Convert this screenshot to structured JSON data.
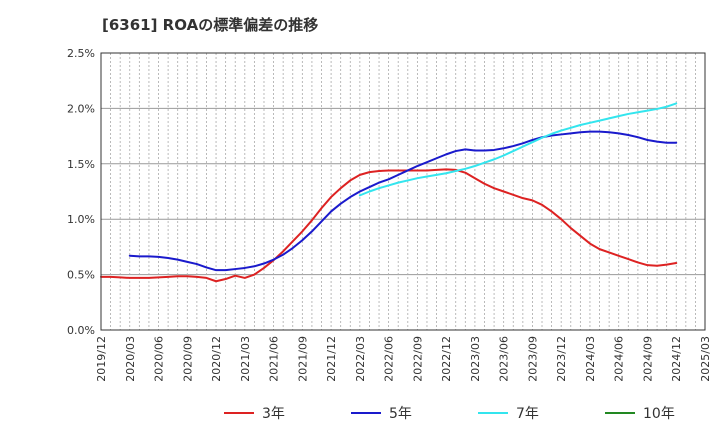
{
  "chart_data": {
    "type": "line",
    "title": "[6361]  ROAの標準偏差の推移",
    "xlabel": "",
    "ylabel": "",
    "ylim": [
      0,
      2.5
    ],
    "y_ticks": [
      "0.0%",
      "0.5%",
      "1.0%",
      "1.5%",
      "2.0%",
      "2.5%"
    ],
    "x_ticks": [
      "2019/12",
      "2020/03",
      "2020/06",
      "2020/09",
      "2020/12",
      "2021/03",
      "2021/06",
      "2021/09",
      "2021/12",
      "2022/03",
      "2022/06",
      "2022/09",
      "2022/12",
      "2023/03",
      "2023/06",
      "2023/09",
      "2023/12",
      "2024/03",
      "2024/06",
      "2024/09",
      "2024/12",
      "2025/03"
    ],
    "grid": true,
    "legend_position": "bottom",
    "series": [
      {
        "name": "3年",
        "color": "#dd2222",
        "values": [
          [
            "2019/12",
            0.48
          ],
          [
            "2020/01",
            0.48
          ],
          [
            "2020/02",
            0.475
          ],
          [
            "2020/03",
            0.47
          ],
          [
            "2020/04",
            0.47
          ],
          [
            "2020/05",
            0.47
          ],
          [
            "2020/06",
            0.475
          ],
          [
            "2020/07",
            0.48
          ],
          [
            "2020/08",
            0.485
          ],
          [
            "2020/09",
            0.485
          ],
          [
            "2020/10",
            0.48
          ],
          [
            "2020/11",
            0.47
          ],
          [
            "2020/12",
            0.44
          ],
          [
            "2021/01",
            0.46
          ],
          [
            "2021/02",
            0.49
          ],
          [
            "2021/03",
            0.47
          ],
          [
            "2021/04",
            0.5
          ],
          [
            "2021/05",
            0.56
          ],
          [
            "2021/06",
            0.63
          ],
          [
            "2021/07",
            0.71
          ],
          [
            "2021/08",
            0.8
          ],
          [
            "2021/09",
            0.89
          ],
          [
            "2021/10",
            0.99
          ],
          [
            "2021/11",
            1.1
          ],
          [
            "2021/12",
            1.2
          ],
          [
            "2022/01",
            1.28
          ],
          [
            "2022/02",
            1.35
          ],
          [
            "2022/03",
            1.4
          ],
          [
            "2022/04",
            1.425
          ],
          [
            "2022/05",
            1.435
          ],
          [
            "2022/06",
            1.44
          ],
          [
            "2022/07",
            1.44
          ],
          [
            "2022/08",
            1.44
          ],
          [
            "2022/09",
            1.44
          ],
          [
            "2022/10",
            1.44
          ],
          [
            "2022/11",
            1.445
          ],
          [
            "2022/12",
            1.45
          ],
          [
            "2023/01",
            1.445
          ],
          [
            "2023/02",
            1.42
          ],
          [
            "2023/03",
            1.37
          ],
          [
            "2023/04",
            1.32
          ],
          [
            "2023/05",
            1.28
          ],
          [
            "2023/06",
            1.25
          ],
          [
            "2023/07",
            1.22
          ],
          [
            "2023/08",
            1.19
          ],
          [
            "2023/09",
            1.17
          ],
          [
            "2023/10",
            1.13
          ],
          [
            "2023/11",
            1.07
          ],
          [
            "2023/12",
            1.0
          ],
          [
            "2024/01",
            0.92
          ],
          [
            "2024/02",
            0.85
          ],
          [
            "2024/03",
            0.78
          ],
          [
            "2024/04",
            0.73
          ],
          [
            "2024/05",
            0.7
          ],
          [
            "2024/06",
            0.67
          ],
          [
            "2024/07",
            0.64
          ],
          [
            "2024/08",
            0.61
          ],
          [
            "2024/09",
            0.585
          ],
          [
            "2024/10",
            0.58
          ],
          [
            "2024/11",
            0.59
          ],
          [
            "2024/12",
            0.605
          ]
        ]
      },
      {
        "name": "5年",
        "color": "#1a1acc",
        "values": [
          [
            "2020/03",
            0.67
          ],
          [
            "2020/04",
            0.665
          ],
          [
            "2020/05",
            0.665
          ],
          [
            "2020/06",
            0.66
          ],
          [
            "2020/07",
            0.65
          ],
          [
            "2020/08",
            0.635
          ],
          [
            "2020/09",
            0.615
          ],
          [
            "2020/10",
            0.595
          ],
          [
            "2020/11",
            0.565
          ],
          [
            "2020/12",
            0.54
          ],
          [
            "2021/01",
            0.54
          ],
          [
            "2021/02",
            0.55
          ],
          [
            "2021/03",
            0.56
          ],
          [
            "2021/04",
            0.575
          ],
          [
            "2021/05",
            0.6
          ],
          [
            "2021/06",
            0.635
          ],
          [
            "2021/07",
            0.68
          ],
          [
            "2021/08",
            0.74
          ],
          [
            "2021/09",
            0.81
          ],
          [
            "2021/10",
            0.89
          ],
          [
            "2021/11",
            0.98
          ],
          [
            "2021/12",
            1.07
          ],
          [
            "2022/01",
            1.14
          ],
          [
            "2022/02",
            1.2
          ],
          [
            "2022/03",
            1.25
          ],
          [
            "2022/04",
            1.29
          ],
          [
            "2022/05",
            1.33
          ],
          [
            "2022/06",
            1.36
          ],
          [
            "2022/07",
            1.4
          ],
          [
            "2022/08",
            1.44
          ],
          [
            "2022/09",
            1.48
          ],
          [
            "2022/10",
            1.515
          ],
          [
            "2022/11",
            1.55
          ],
          [
            "2022/12",
            1.585
          ],
          [
            "2023/01",
            1.615
          ],
          [
            "2023/02",
            1.63
          ],
          [
            "2023/03",
            1.62
          ],
          [
            "2023/04",
            1.62
          ],
          [
            "2023/05",
            1.625
          ],
          [
            "2023/06",
            1.64
          ],
          [
            "2023/07",
            1.66
          ],
          [
            "2023/08",
            1.685
          ],
          [
            "2023/09",
            1.715
          ],
          [
            "2023/10",
            1.74
          ],
          [
            "2023/11",
            1.755
          ],
          [
            "2023/12",
            1.765
          ],
          [
            "2024/01",
            1.775
          ],
          [
            "2024/02",
            1.785
          ],
          [
            "2024/03",
            1.79
          ],
          [
            "2024/04",
            1.79
          ],
          [
            "2024/05",
            1.785
          ],
          [
            "2024/06",
            1.775
          ],
          [
            "2024/07",
            1.76
          ],
          [
            "2024/08",
            1.74
          ],
          [
            "2024/09",
            1.715
          ],
          [
            "2024/10",
            1.7
          ],
          [
            "2024/11",
            1.69
          ],
          [
            "2024/12",
            1.69
          ]
        ]
      },
      {
        "name": "7年",
        "color": "#33e5ee",
        "values": [
          [
            "2022/03",
            1.215
          ],
          [
            "2022/04",
            1.25
          ],
          [
            "2022/05",
            1.28
          ],
          [
            "2022/06",
            1.305
          ],
          [
            "2022/07",
            1.33
          ],
          [
            "2022/08",
            1.35
          ],
          [
            "2022/09",
            1.37
          ],
          [
            "2022/10",
            1.385
          ],
          [
            "2022/11",
            1.4
          ],
          [
            "2022/12",
            1.415
          ],
          [
            "2023/01",
            1.435
          ],
          [
            "2023/02",
            1.455
          ],
          [
            "2023/03",
            1.48
          ],
          [
            "2023/04",
            1.51
          ],
          [
            "2023/05",
            1.54
          ],
          [
            "2023/06",
            1.575
          ],
          [
            "2023/07",
            1.615
          ],
          [
            "2023/08",
            1.655
          ],
          [
            "2023/09",
            1.695
          ],
          [
            "2023/10",
            1.735
          ],
          [
            "2023/11",
            1.77
          ],
          [
            "2023/12",
            1.8
          ],
          [
            "2024/01",
            1.825
          ],
          [
            "2024/02",
            1.85
          ],
          [
            "2024/03",
            1.87
          ],
          [
            "2024/04",
            1.89
          ],
          [
            "2024/05",
            1.91
          ],
          [
            "2024/06",
            1.93
          ],
          [
            "2024/07",
            1.95
          ],
          [
            "2024/08",
            1.965
          ],
          [
            "2024/09",
            1.98
          ],
          [
            "2024/10",
            1.995
          ],
          [
            "2024/11",
            2.015
          ],
          [
            "2024/12",
            2.045
          ]
        ]
      },
      {
        "name": "10年",
        "color": "#228822",
        "values": []
      }
    ]
  }
}
